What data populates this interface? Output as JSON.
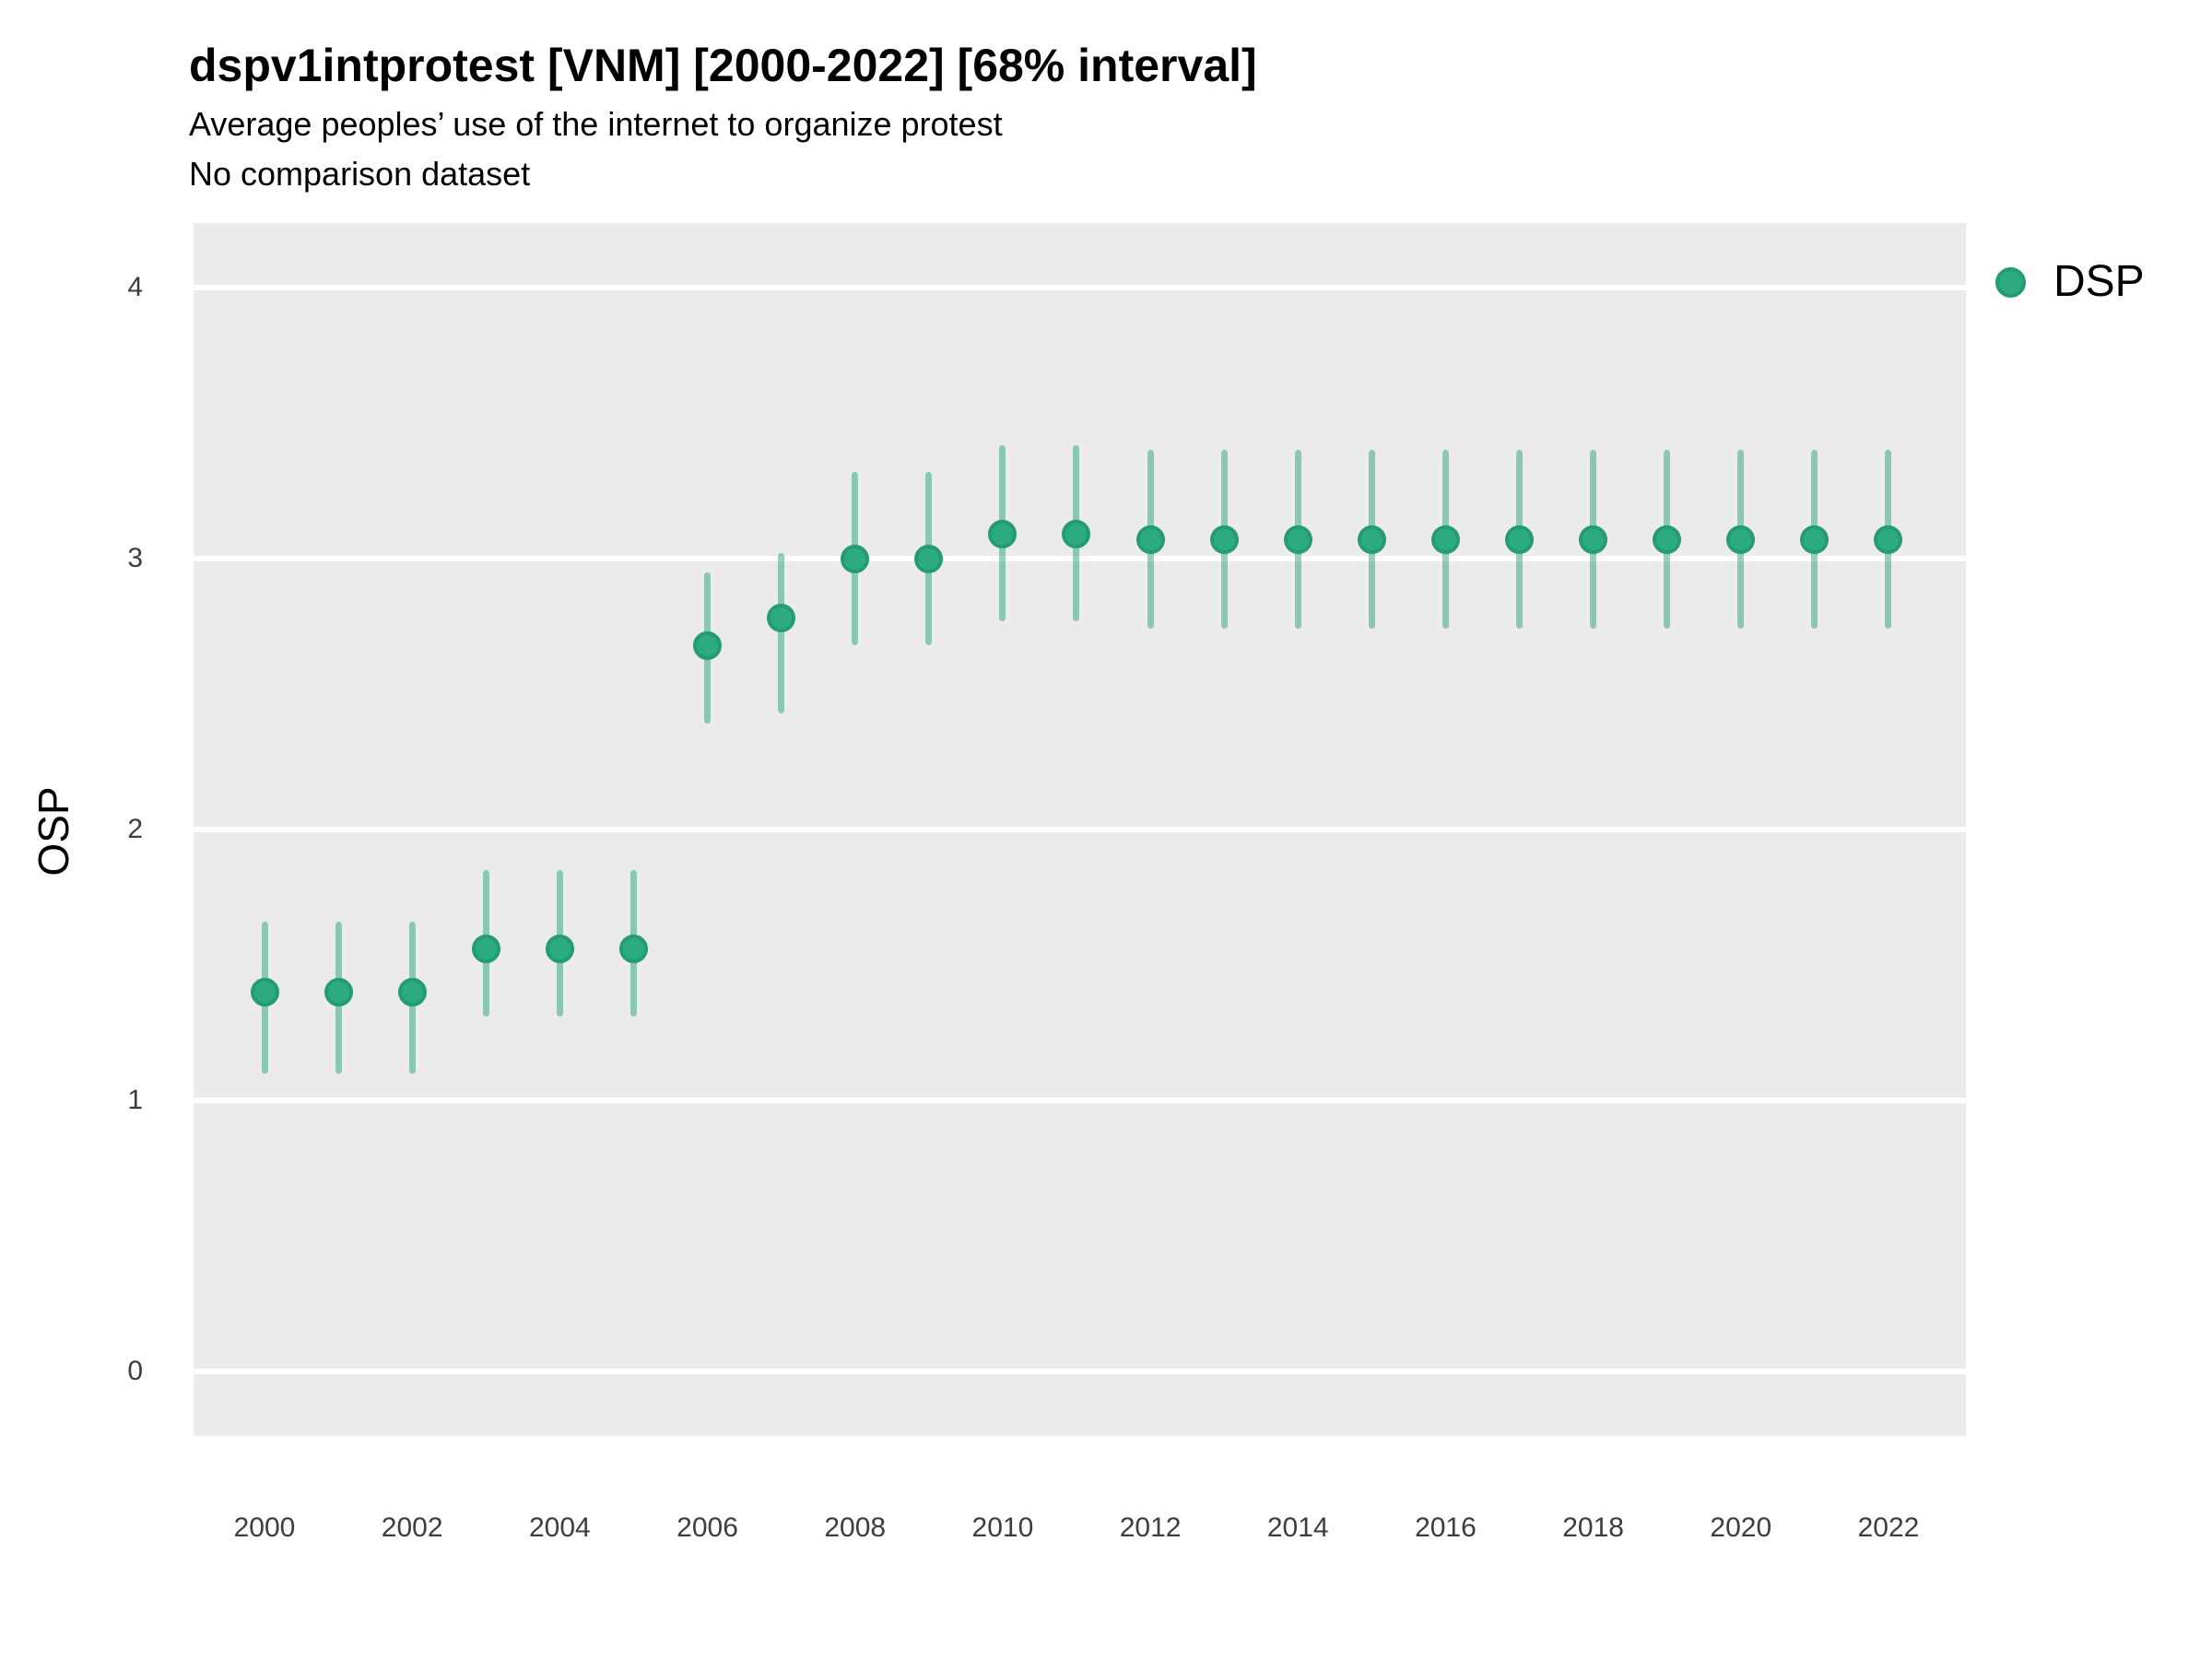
{
  "chart_data": {
    "type": "pointrange",
    "title": "dspv1intprotest [VNM] [2000-2022] [68% interval]",
    "subtitle": "Average peoples’ use of the internet to organize protest",
    "note": "No comparison dataset",
    "ylabel": "OSP",
    "xlabel": "",
    "interval_label": "68% interval",
    "grid": "horizontal-major-only",
    "legend_position": "right",
    "ylim": [
      -0.24,
      4.24
    ],
    "yticks": [
      4,
      3,
      2,
      1,
      0
    ],
    "xticks": [
      2000,
      2002,
      2004,
      2006,
      2008,
      2010,
      2012,
      2014,
      2016,
      2018,
      2020,
      2022
    ],
    "legend": [
      {
        "label": "DSP"
      }
    ],
    "series": [
      {
        "name": "DSP",
        "points": [
          {
            "year": 2000,
            "value": 1.4,
            "lo": 1.1,
            "hi": 1.66
          },
          {
            "year": 2001,
            "value": 1.4,
            "lo": 1.1,
            "hi": 1.66
          },
          {
            "year": 2002,
            "value": 1.4,
            "lo": 1.1,
            "hi": 1.66
          },
          {
            "year": 2003,
            "value": 1.56,
            "lo": 1.31,
            "hi": 1.85
          },
          {
            "year": 2004,
            "value": 1.56,
            "lo": 1.31,
            "hi": 1.85
          },
          {
            "year": 2005,
            "value": 1.56,
            "lo": 1.31,
            "hi": 1.85
          },
          {
            "year": 2006,
            "value": 2.68,
            "lo": 2.39,
            "hi": 2.95
          },
          {
            "year": 2007,
            "value": 2.78,
            "lo": 2.43,
            "hi": 3.02
          },
          {
            "year": 2008,
            "value": 3.0,
            "lo": 2.68,
            "hi": 3.32
          },
          {
            "year": 2009,
            "value": 3.0,
            "lo": 2.68,
            "hi": 3.32
          },
          {
            "year": 2010,
            "value": 3.09,
            "lo": 2.77,
            "hi": 3.42
          },
          {
            "year": 2011,
            "value": 3.09,
            "lo": 2.77,
            "hi": 3.42
          },
          {
            "year": 2012,
            "value": 3.07,
            "lo": 2.74,
            "hi": 3.4
          },
          {
            "year": 2013,
            "value": 3.07,
            "lo": 2.74,
            "hi": 3.4
          },
          {
            "year": 2014,
            "value": 3.07,
            "lo": 2.74,
            "hi": 3.4
          },
          {
            "year": 2015,
            "value": 3.07,
            "lo": 2.74,
            "hi": 3.4
          },
          {
            "year": 2016,
            "value": 3.07,
            "lo": 2.74,
            "hi": 3.4
          },
          {
            "year": 2017,
            "value": 3.07,
            "lo": 2.74,
            "hi": 3.4
          },
          {
            "year": 2018,
            "value": 3.07,
            "lo": 2.74,
            "hi": 3.4
          },
          {
            "year": 2019,
            "value": 3.07,
            "lo": 2.74,
            "hi": 3.4
          },
          {
            "year": 2020,
            "value": 3.07,
            "lo": 2.74,
            "hi": 3.4
          },
          {
            "year": 2021,
            "value": 3.07,
            "lo": 2.74,
            "hi": 3.4
          },
          {
            "year": 2022,
            "value": 3.07,
            "lo": 2.74,
            "hi": 3.4
          }
        ]
      }
    ],
    "colors": {
      "point_fill": "#2dab80",
      "point_border": "#249c72",
      "interval": "rgba(41,166,122,0.5)",
      "plot_bg": "#ebebeb",
      "gridline": "#ffffff",
      "tick_text": "#3d3d3d",
      "text": "#000000"
    }
  }
}
